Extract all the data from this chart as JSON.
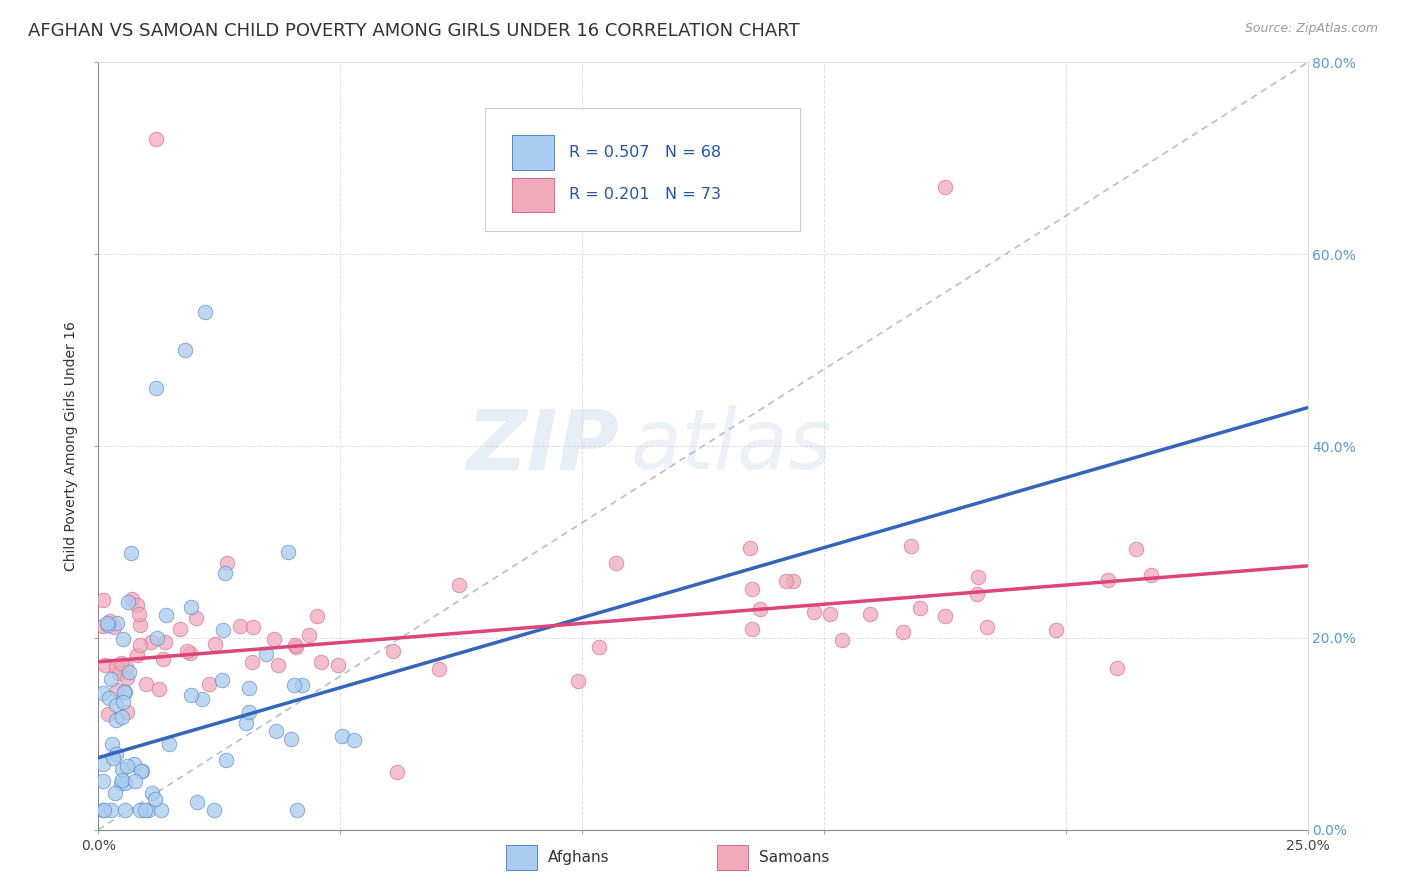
{
  "title": "AFGHAN VS SAMOAN CHILD POVERTY AMONG GIRLS UNDER 16 CORRELATION CHART",
  "source": "Source: ZipAtlas.com",
  "ylabel": "Child Poverty Among Girls Under 16",
  "xlim": [
    0.0,
    0.25
  ],
  "ylim": [
    0.0,
    0.8
  ],
  "xtick_positions": [
    0.0,
    0.05,
    0.1,
    0.15,
    0.2,
    0.25
  ],
  "ytick_positions": [
    0.0,
    0.2,
    0.4,
    0.6,
    0.8
  ],
  "ytick_labels_right": [
    "0.0%",
    "20.0%",
    "40.0%",
    "60.0%",
    "80.0%"
  ],
  "afghan_color": "#aaccee",
  "samoan_color": "#f0aabb",
  "afghan_edge_color": "#5588cc",
  "samoan_edge_color": "#dd6688",
  "afghan_line_color": "#3366bb",
  "samoan_line_color": "#dd4477",
  "ref_line_color": "#aabbcc",
  "watermark_color": "#d0e4f2",
  "legend_label_afghans": "Afghans",
  "legend_label_samoans": "Samoans",
  "afghan_r": 0.507,
  "afghan_n": 68,
  "samoan_r": 0.201,
  "samoan_n": 73,
  "afghan_trend_x0": 0.0,
  "afghan_trend_y0": 0.075,
  "afghan_trend_x1": 0.25,
  "afghan_trend_y1": 0.44,
  "samoan_trend_x0": 0.0,
  "samoan_trend_y0": 0.175,
  "samoan_trend_x1": 0.25,
  "samoan_trend_y1": 0.275,
  "background_color": "#ffffff",
  "grid_color": "#cccccc",
  "title_fontsize": 13,
  "axis_label_fontsize": 10,
  "tick_fontsize": 10,
  "right_tick_color": "#5599dd",
  "legend_text_color": "#2255aa"
}
